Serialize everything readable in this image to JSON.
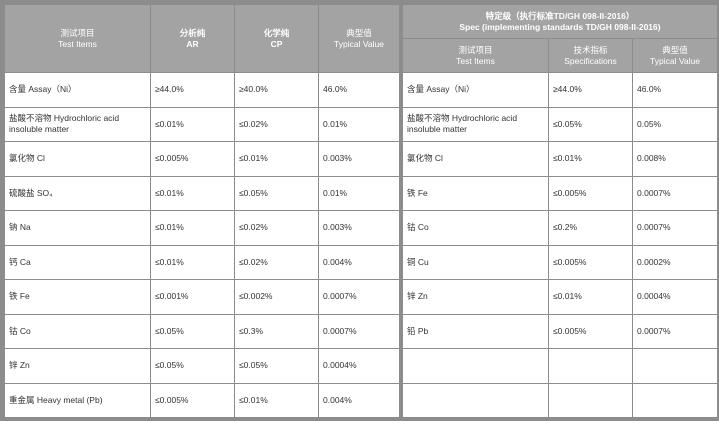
{
  "left": {
    "headers": [
      {
        "cn": "测试项目",
        "en": "Test Items"
      },
      {
        "cn": "分析纯",
        "en": "AR"
      },
      {
        "cn": "化学纯",
        "en": "CP"
      },
      {
        "cn": "典型值",
        "en": "Typical Value"
      }
    ],
    "rows": [
      [
        "含量 Assay（Ni）",
        "≥44.0%",
        "≥40.0%",
        "46.0%"
      ],
      [
        "盐酸不溶物 Hydrochloric acid insoluble matter",
        "≤0.01%",
        "≤0.02%",
        "0.01%"
      ],
      [
        "氯化物 Cl",
        "≤0.005%",
        "≤0.01%",
        "0.003%"
      ],
      [
        "硫酸盐 SO₄",
        "≤0.01%",
        "≤0.05%",
        "0.01%"
      ],
      [
        "钠 Na",
        "≤0.01%",
        "≤0.02%",
        "0.003%"
      ],
      [
        "钙 Ca",
        "≤0.01%",
        "≤0.02%",
        "0.004%"
      ],
      [
        "铁 Fe",
        "≤0.001%",
        "≤0.002%",
        "0.0007%"
      ],
      [
        "钴 Co",
        "≤0.05%",
        "≤0.3%",
        "0.0007%"
      ],
      [
        "锌 Zn",
        "≤0.05%",
        "≤0.05%",
        "0.0004%"
      ],
      [
        "重金属 Heavy metal (Pb)",
        "≤0.005%",
        "≤0.01%",
        "0.004%"
      ]
    ]
  },
  "right": {
    "title_cn": "特定级（执行标准TD/GH 098-II-2016）",
    "title_en": "Spec (implementing standards TD/GH 098-II-2016)",
    "headers": [
      {
        "cn": "测试项目",
        "en": "Test Items"
      },
      {
        "cn": "技术指标",
        "en": "Specifications"
      },
      {
        "cn": "典型值",
        "en": "Typical Value"
      }
    ],
    "rows": [
      [
        "含量 Assay（Ni）",
        "≥44.0%",
        "46.0%"
      ],
      [
        "盐酸不溶物 Hydrochloric acid insoluble matter",
        "≤0.05%",
        "0.05%"
      ],
      [
        "氯化物 Cl",
        "≤0.01%",
        "0.008%"
      ],
      [
        "铁 Fe",
        "≤0.005%",
        "0.0007%"
      ],
      [
        "钴 Co",
        "≤0.2%",
        "0.0007%"
      ],
      [
        "铜 Cu",
        "≤0.005%",
        "0.0002%"
      ],
      [
        "锌 Zn",
        "≤0.01%",
        "0.0004%"
      ],
      [
        "铅 Pb",
        "≤0.005%",
        "0.0007%"
      ],
      [
        "",
        "",
        ""
      ],
      [
        "",
        "",
        ""
      ]
    ]
  }
}
